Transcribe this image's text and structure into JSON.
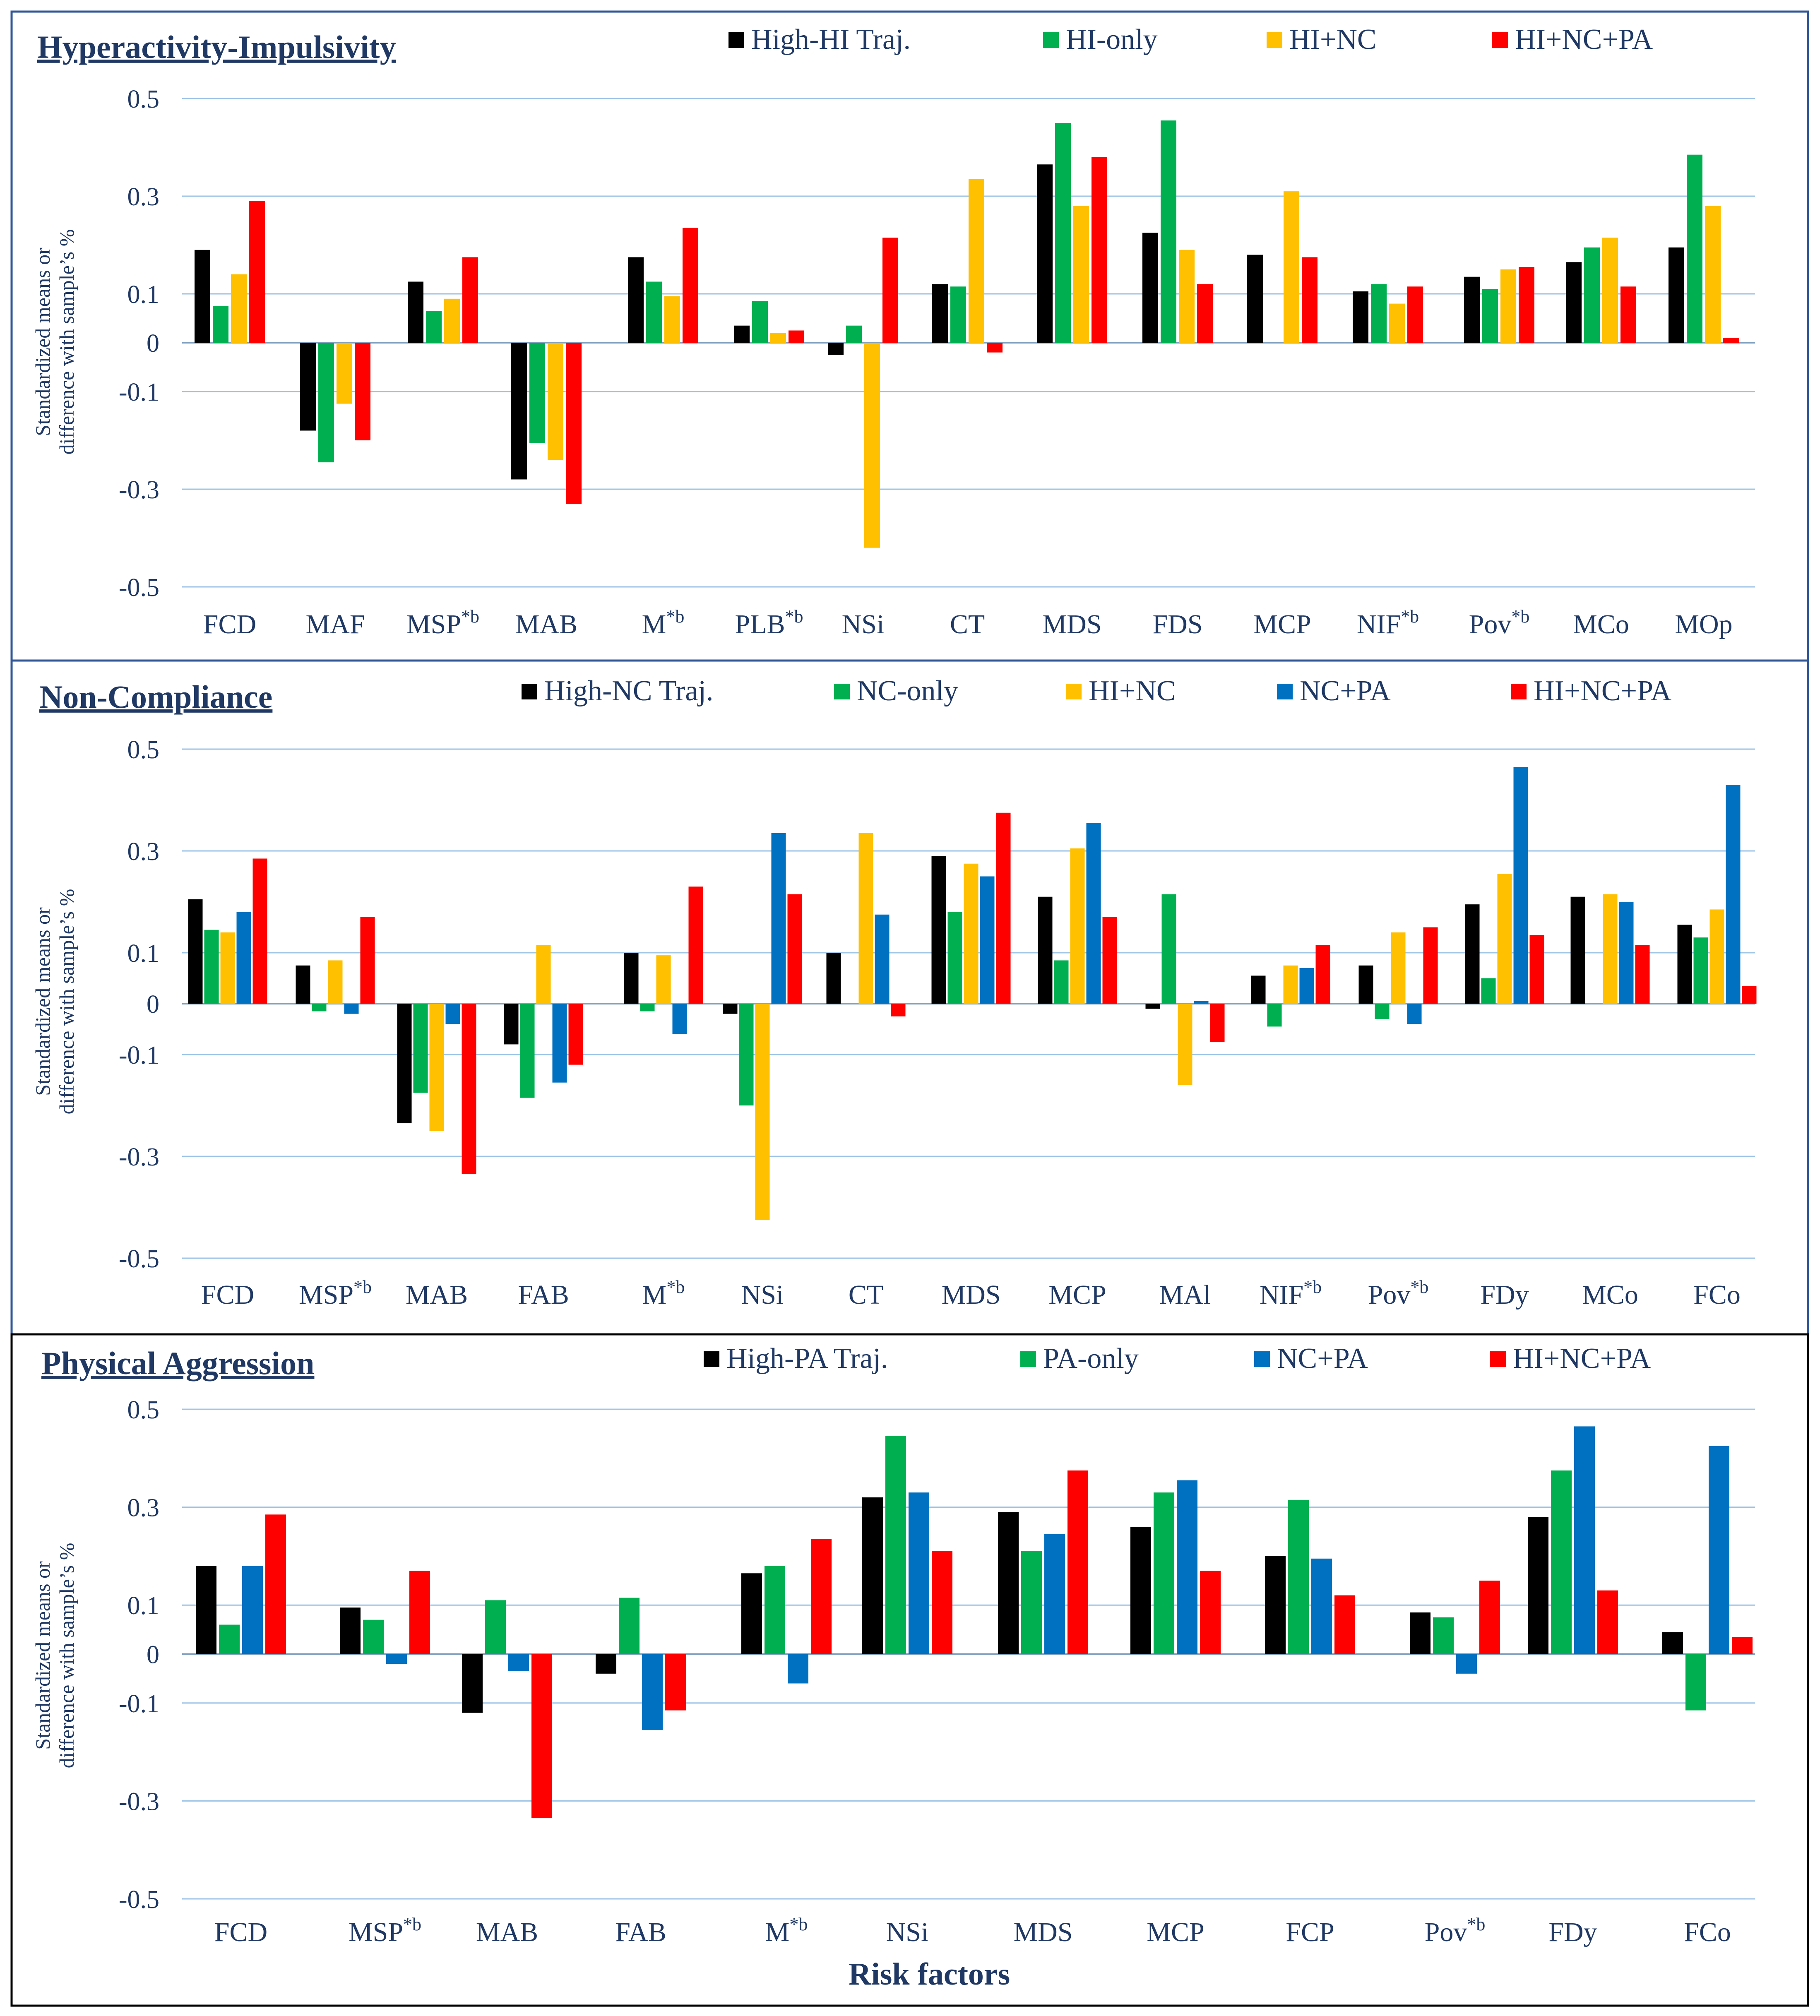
{
  "colors": {
    "black": "#000000",
    "green": "#00B050",
    "yellow": "#FFC000",
    "blue": "#0070C0",
    "red": "#FF0000",
    "text": "#1F3864",
    "grid": "#9DC3E6",
    "border_panel1": "#2F5597",
    "border_panel2": "#2F5597",
    "border_panel3": "#000000"
  },
  "y_axis_label_line1": "Standardized means or",
  "y_axis_label_line2": "difference with sample’s %",
  "x_axis_label": "Risk factors",
  "chart_data": [
    {
      "type": "bar",
      "title": "Hyperactivity-Impulsivity",
      "ylim": [
        -0.5,
        0.5
      ],
      "yticks": [
        0.5,
        0.3,
        0.1,
        0,
        -0.1,
        -0.3,
        -0.5
      ],
      "ytick_labels": [
        "0.5",
        "0.3",
        "0.1",
        "0",
        "-0.1",
        "-0.3",
        "-0.5"
      ],
      "categories": [
        {
          "label": "FCD",
          "sup": ""
        },
        {
          "label": "MAF",
          "sup": ""
        },
        {
          "label": "MSP",
          "sup": "*b"
        },
        {
          "label": "MAB",
          "sup": ""
        },
        {
          "label": "M",
          "sup": "*b"
        },
        {
          "label": "PLB",
          "sup": "*b"
        },
        {
          "label": "NSi",
          "sup": ""
        },
        {
          "label": "CT",
          "sup": ""
        },
        {
          "label": "MDS",
          "sup": ""
        },
        {
          "label": "FDS",
          "sup": ""
        },
        {
          "label": "MCP",
          "sup": ""
        },
        {
          "label": "NIF",
          "sup": "*b"
        },
        {
          "label": "Pov",
          "sup": "*b"
        },
        {
          "label": "MCo",
          "sup": ""
        },
        {
          "label": "MOp",
          "sup": ""
        }
      ],
      "series": [
        {
          "name": "High-HI Traj.",
          "color": "black",
          "values": [
            0.19,
            -0.18,
            0.125,
            -0.28,
            0.175,
            0.035,
            -0.025,
            0.12,
            0.365,
            0.225,
            0.18,
            0.105,
            0.135,
            0.165,
            0.195
          ]
        },
        {
          "name": "HI-only",
          "color": "green",
          "values": [
            0.075,
            -0.245,
            0.065,
            -0.205,
            0.125,
            0.085,
            0.035,
            0.115,
            0.45,
            0.455,
            null,
            0.12,
            0.11,
            0.195,
            0.385
          ]
        },
        {
          "name": "HI+NC",
          "color": "yellow",
          "values": [
            0.14,
            -0.125,
            0.09,
            -0.24,
            0.095,
            0.02,
            -0.42,
            0.335,
            0.28,
            0.19,
            0.31,
            0.08,
            0.15,
            0.215,
            0.28
          ]
        },
        {
          "name": "HI+NC+PA",
          "color": "red",
          "values": [
            0.29,
            -0.2,
            0.175,
            -0.33,
            0.235,
            0.025,
            0.215,
            -0.02,
            0.38,
            0.12,
            0.175,
            0.115,
            0.155,
            0.115,
            0.01
          ]
        }
      ]
    },
    {
      "type": "bar",
      "title": "Non-Compliance",
      "ylim": [
        -0.5,
        0.5
      ],
      "yticks": [
        0.5,
        0.3,
        0.1,
        0,
        -0.1,
        -0.3,
        -0.5
      ],
      "ytick_labels": [
        "0.5",
        "0.3",
        "0.1",
        "0",
        "-0.1",
        "-0.3",
        "-0.5"
      ],
      "categories": [
        {
          "label": "FCD",
          "sup": ""
        },
        {
          "label": "MSP",
          "sup": "*b"
        },
        {
          "label": "MAB",
          "sup": ""
        },
        {
          "label": "FAB",
          "sup": ""
        },
        {
          "label": "M",
          "sup": "*b"
        },
        {
          "label": "NSi",
          "sup": ""
        },
        {
          "label": "CT",
          "sup": ""
        },
        {
          "label": "MDS",
          "sup": ""
        },
        {
          "label": "MCP",
          "sup": ""
        },
        {
          "label": "MAl",
          "sup": ""
        },
        {
          "label": "NIF",
          "sup": "*b"
        },
        {
          "label": "Pov",
          "sup": "*b"
        },
        {
          "label": "FDy",
          "sup": ""
        },
        {
          "label": "MCo",
          "sup": ""
        },
        {
          "label": "FCo",
          "sup": ""
        }
      ],
      "series": [
        {
          "name": "High-NC Traj.",
          "color": "black",
          "values": [
            0.205,
            0.075,
            -0.235,
            -0.08,
            0.1,
            -0.02,
            0.1,
            0.29,
            0.21,
            -0.01,
            0.055,
            0.075,
            0.195,
            0.21,
            0.155
          ]
        },
        {
          "name": "NC-only",
          "color": "green",
          "values": [
            0.145,
            -0.015,
            -0.175,
            -0.185,
            -0.015,
            -0.2,
            null,
            0.18,
            0.085,
            0.215,
            -0.045,
            -0.03,
            0.05,
            null,
            0.13
          ]
        },
        {
          "name": "HI+NC",
          "color": "yellow",
          "values": [
            0.14,
            0.085,
            -0.25,
            0.115,
            0.095,
            -0.425,
            0.335,
            0.275,
            0.305,
            -0.16,
            0.075,
            0.14,
            0.255,
            0.215,
            0.185
          ]
        },
        {
          "name": "NC+PA",
          "color": "blue",
          "values": [
            0.18,
            -0.02,
            -0.04,
            -0.155,
            -0.06,
            0.335,
            0.175,
            0.25,
            0.355,
            0.005,
            0.07,
            -0.04,
            0.465,
            0.2,
            0.43
          ]
        },
        {
          "name": "HI+NC+PA",
          "color": "red",
          "values": [
            0.285,
            0.17,
            -0.335,
            -0.12,
            0.23,
            0.215,
            -0.025,
            0.375,
            0.17,
            -0.075,
            0.115,
            0.15,
            0.135,
            0.115,
            0.035
          ]
        }
      ]
    },
    {
      "type": "bar",
      "title": "Physical Aggression",
      "ylim": [
        -0.5,
        0.5
      ],
      "yticks": [
        0.5,
        0.3,
        0.1,
        0,
        -0.1,
        -0.3,
        -0.5
      ],
      "ytick_labels": [
        "0.5",
        "0.3",
        "0.1",
        "0",
        "-0.1",
        "-0.3",
        "-0.5"
      ],
      "xlabel": "Risk factors",
      "categories": [
        {
          "label": "FCD",
          "sup": ""
        },
        {
          "label": "MSP",
          "sup": "*b"
        },
        {
          "label": "MAB",
          "sup": ""
        },
        {
          "label": "FAB",
          "sup": ""
        },
        {
          "label": "M",
          "sup": "*b"
        },
        {
          "label": "NSi",
          "sup": ""
        },
        {
          "label": "MDS",
          "sup": ""
        },
        {
          "label": "MCP",
          "sup": ""
        },
        {
          "label": "FCP",
          "sup": ""
        },
        {
          "label": "Pov",
          "sup": "*b"
        },
        {
          "label": "FDy",
          "sup": ""
        },
        {
          "label": "FCo",
          "sup": ""
        }
      ],
      "series": [
        {
          "name": "High-PA Traj.",
          "color": "black",
          "values": [
            0.18,
            0.095,
            -0.12,
            -0.04,
            0.165,
            0.32,
            0.29,
            0.26,
            0.2,
            0.085,
            0.28,
            0.045
          ]
        },
        {
          "name": "PA-only",
          "color": "green",
          "values": [
            0.06,
            0.07,
            0.11,
            0.115,
            0.18,
            0.445,
            0.21,
            0.33,
            0.315,
            0.075,
            0.375,
            -0.115
          ]
        },
        {
          "name": "NC+PA",
          "color": "blue",
          "values": [
            0.18,
            -0.02,
            -0.035,
            -0.155,
            -0.06,
            0.33,
            0.245,
            0.355,
            0.195,
            -0.04,
            0.465,
            0.425
          ]
        },
        {
          "name": "HI+NC+PA",
          "color": "red",
          "values": [
            0.285,
            0.17,
            -0.335,
            -0.115,
            0.235,
            0.21,
            0.375,
            0.17,
            0.12,
            0.15,
            0.13,
            0.035
          ]
        }
      ]
    }
  ]
}
